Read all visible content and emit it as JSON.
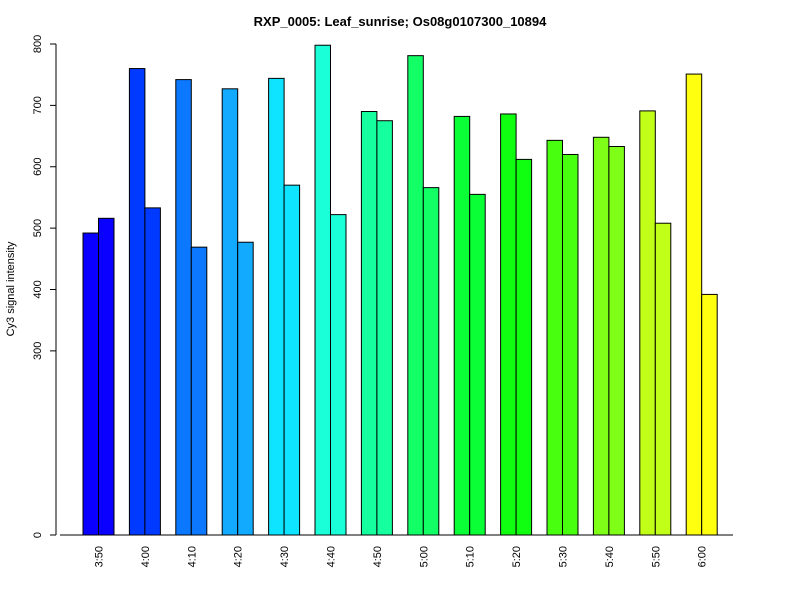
{
  "chart_data": {
    "type": "bar",
    "title": "RXP_0005: Leaf_sunrise; Os08g0107300_10894",
    "ylabel": "Cy3 signal intensity",
    "xlabel": "",
    "ylim": [
      0,
      800
    ],
    "yticks": [
      0,
      300,
      400,
      500,
      600,
      700,
      800
    ],
    "categories": [
      "3:50",
      "4:00",
      "4:10",
      "4:20",
      "4:30",
      "4:40",
      "4:50",
      "5:00",
      "5:10",
      "5:20",
      "5:30",
      "5:40",
      "5:50",
      "6:00"
    ],
    "colors": [
      "#0a00ff",
      "#0039ff",
      "#0c78ff",
      "#12aaff",
      "#0ee3ff",
      "#1affd8",
      "#15ff9e",
      "#12ff66",
      "#0aff36",
      "#10ff10",
      "#48ff10",
      "#7fff18",
      "#c2ff18",
      "#ffff10"
    ],
    "series": [
      {
        "values": [
          492,
          760,
          742,
          727,
          744,
          798,
          690,
          781,
          682,
          686,
          643,
          648,
          691,
          751
        ]
      },
      {
        "values": [
          516,
          533,
          469,
          477,
          570,
          522,
          675,
          566,
          555,
          612,
          620,
          633,
          508,
          392
        ]
      }
    ],
    "grid": false,
    "legend": "none"
  }
}
